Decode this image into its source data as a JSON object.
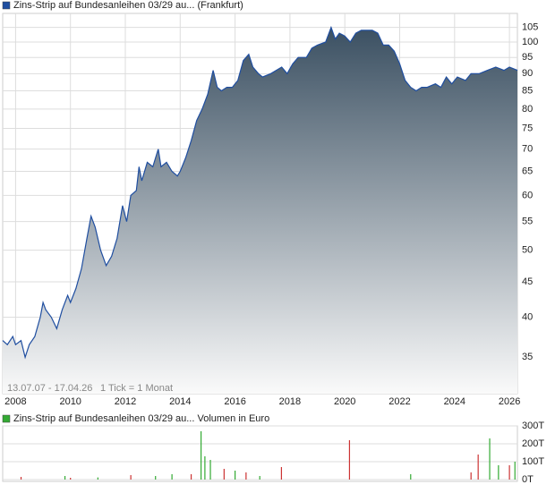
{
  "chart_data": [
    {
      "type": "area",
      "log": true,
      "grid": true,
      "x": [
        2007.53,
        2007.7,
        2007.9,
        2008.0,
        2008.2,
        2008.35,
        2008.5,
        2008.7,
        2008.9,
        2009.0,
        2009.1,
        2009.3,
        2009.5,
        2009.7,
        2009.9,
        2010.0,
        2010.2,
        2010.4,
        2010.6,
        2010.75,
        2010.9,
        2011.1,
        2011.3,
        2011.5,
        2011.7,
        2011.9,
        2012.05,
        2012.2,
        2012.4,
        2012.5,
        2012.6,
        2012.8,
        2013.0,
        2013.2,
        2013.3,
        2013.5,
        2013.7,
        2013.9,
        2014.0,
        2014.2,
        2014.4,
        2014.6,
        2014.8,
        2015.0,
        2015.2,
        2015.35,
        2015.5,
        2015.7,
        2015.9,
        2016.1,
        2016.3,
        2016.5,
        2016.65,
        2016.85,
        2017.0,
        2017.3,
        2017.5,
        2017.7,
        2017.9,
        2018.1,
        2018.3,
        2018.6,
        2018.8,
        2019.0,
        2019.3,
        2019.5,
        2019.65,
        2019.8,
        2020.0,
        2020.2,
        2020.4,
        2020.6,
        2021.0,
        2021.2,
        2021.4,
        2021.6,
        2021.8,
        2022.0,
        2022.2,
        2022.4,
        2022.6,
        2022.8,
        2023.0,
        2023.3,
        2023.5,
        2023.7,
        2023.9,
        2024.1,
        2024.4,
        2024.6,
        2024.9,
        2025.2,
        2025.5,
        2025.8,
        2026.0,
        2026.29
      ],
      "series": [
        {
          "name": "Zins-Strip auf Bundesanleihen 03/29 au... (Frankfurt)",
          "color": "#1f4ea0",
          "values": [
            37,
            36.5,
            37.5,
            36.5,
            37,
            35,
            36.5,
            37.5,
            40,
            42,
            41,
            40,
            38.5,
            41,
            43,
            42,
            44,
            47,
            52,
            56,
            54,
            50,
            47.5,
            49,
            52,
            58,
            55,
            60,
            61,
            66,
            63,
            67,
            66,
            70,
            66,
            67,
            65,
            64,
            65,
            68,
            72,
            77,
            80,
            84,
            91,
            86,
            85,
            86,
            86,
            88,
            94,
            96,
            92,
            90,
            89,
            90,
            91,
            92,
            90,
            93,
            95,
            95,
            98,
            99,
            100,
            105,
            101,
            103,
            102,
            100,
            103,
            104,
            104,
            103,
            99,
            99,
            97,
            93,
            88,
            86,
            85,
            86,
            86,
            87,
            86,
            89,
            87,
            89,
            88,
            90,
            90,
            91,
            92,
            91,
            92,
            91
          ]
        }
      ],
      "xlim": [
        2007.53,
        2026.29
      ],
      "ylim": [
        31,
        110
      ],
      "xticks": [
        2008,
        2010,
        2012,
        2014,
        2016,
        2018,
        2020,
        2022,
        2024,
        2026
      ],
      "yticks": [
        35,
        40,
        45,
        50,
        55,
        60,
        65,
        70,
        75,
        80,
        85,
        90,
        95,
        100,
        105
      ],
      "annotations": [
        "13.07.07 - 17.04.26",
        "1 Tick = 1 Monat"
      ]
    },
    {
      "type": "bar",
      "x": [
        2008.2,
        2009.8,
        2010.0,
        2011.0,
        2012.2,
        2013.1,
        2013.7,
        2014.4,
        2014.76,
        2014.9,
        2015.1,
        2015.6,
        2016.0,
        2016.4,
        2016.9,
        2017.69,
        2020.17,
        2022.4,
        2024.6,
        2024.86,
        2025.28,
        2025.6,
        2026.0,
        2026.2
      ],
      "series": [
        {
          "name": "Zins-Strip auf Bundesanleihen 03/29 au... Volumen in Euro",
          "color": "#33aa33",
          "values": [
            15,
            20,
            10,
            12,
            25,
            20,
            30,
            30,
            270,
            130,
            110,
            60,
            50,
            40,
            20,
            70,
            220,
            30,
            40,
            140,
            230,
            80,
            80,
            100
          ],
          "colors": [
            "#c33",
            "#3a3",
            "#c33",
            "#3a3",
            "#c33",
            "#3a3",
            "#3a3",
            "#c33",
            "#3a3",
            "#3a3",
            "#3a3",
            "#c33",
            "#3a3",
            "#c33",
            "#3a3",
            "#c33",
            "#c33",
            "#3a3",
            "#c33",
            "#c33",
            "#3a3",
            "#3a3",
            "#c33",
            "#3a3"
          ]
        }
      ],
      "xlim": [
        2007.53,
        2026.29
      ],
      "ylim": [
        0,
        300
      ],
      "yticks": [
        {
          "value": 0,
          "label": "0T"
        },
        {
          "value": 100,
          "label": "100T"
        },
        {
          "value": 200,
          "label": "200T"
        },
        {
          "value": 300,
          "label": "300T"
        }
      ]
    }
  ]
}
